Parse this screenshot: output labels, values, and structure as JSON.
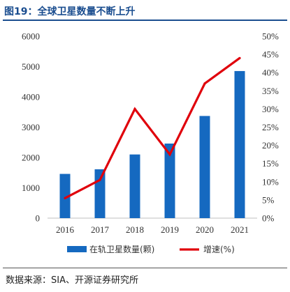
{
  "figure": {
    "title": "图19：全球卫星数量不断上升",
    "source": "数据来源：SIA、开源证券研究所"
  },
  "chart_data": {
    "type": "bar",
    "categories": [
      "2016",
      "2017",
      "2018",
      "2019",
      "2020",
      "2021"
    ],
    "series": [
      {
        "name": "在轨卫星数量(颗)",
        "type": "bar",
        "axis": "left",
        "color": "#1569c0",
        "values": [
          1459,
          1612,
          2100,
          2460,
          3370,
          4852
        ]
      },
      {
        "name": "增速(%)",
        "type": "line",
        "axis": "right",
        "color": "#e0000b",
        "values": [
          5.5,
          10.5,
          30.0,
          17.5,
          37.0,
          44.0
        ]
      }
    ],
    "y_left": {
      "ylim": [
        0,
        6000
      ],
      "ticks": [
        "0",
        "1000",
        "2000",
        "3000",
        "4000",
        "5000",
        "6000"
      ]
    },
    "y_right": {
      "ylim": [
        0,
        50
      ],
      "ticks": [
        "0%",
        "5%",
        "10%",
        "15%",
        "20%",
        "25%",
        "30%",
        "35%",
        "40%",
        "45%",
        "50%"
      ]
    },
    "legend": {
      "placement": "bottom",
      "items": [
        "在轨卫星数量(颗)",
        "增速(%)"
      ]
    },
    "grid": false
  }
}
